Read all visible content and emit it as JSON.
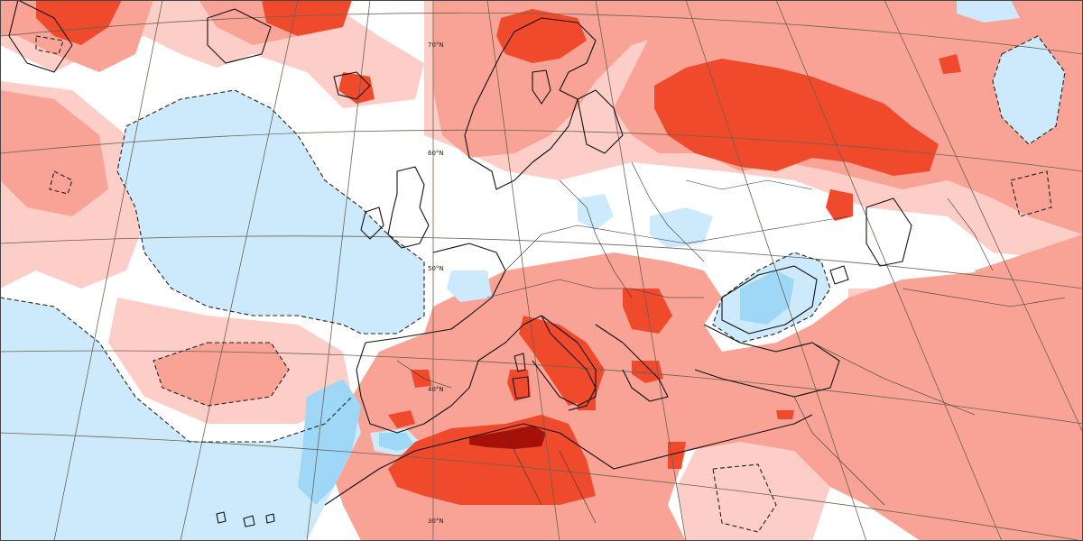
{
  "map": {
    "graticule_labels": [
      "70°N",
      "60°N",
      "50°N",
      "40°N",
      "30°N"
    ],
    "colors": {
      "land_background": "#ffffff",
      "neutral": "#ffffff",
      "warm_light": "#fdcdc8",
      "warm_medium": "#f8a396",
      "warm_strong": "#f04a2c",
      "warm_extreme": "#a51008",
      "cool_light": "#cdeafc",
      "cool_medium": "#9fd8f7",
      "coastline": "#111111",
      "contour_dashed": "#222222",
      "graticule": "#6b6250"
    },
    "icons": {
      "coastline": "coastline-outline",
      "contour": "dashed-contour"
    }
  }
}
